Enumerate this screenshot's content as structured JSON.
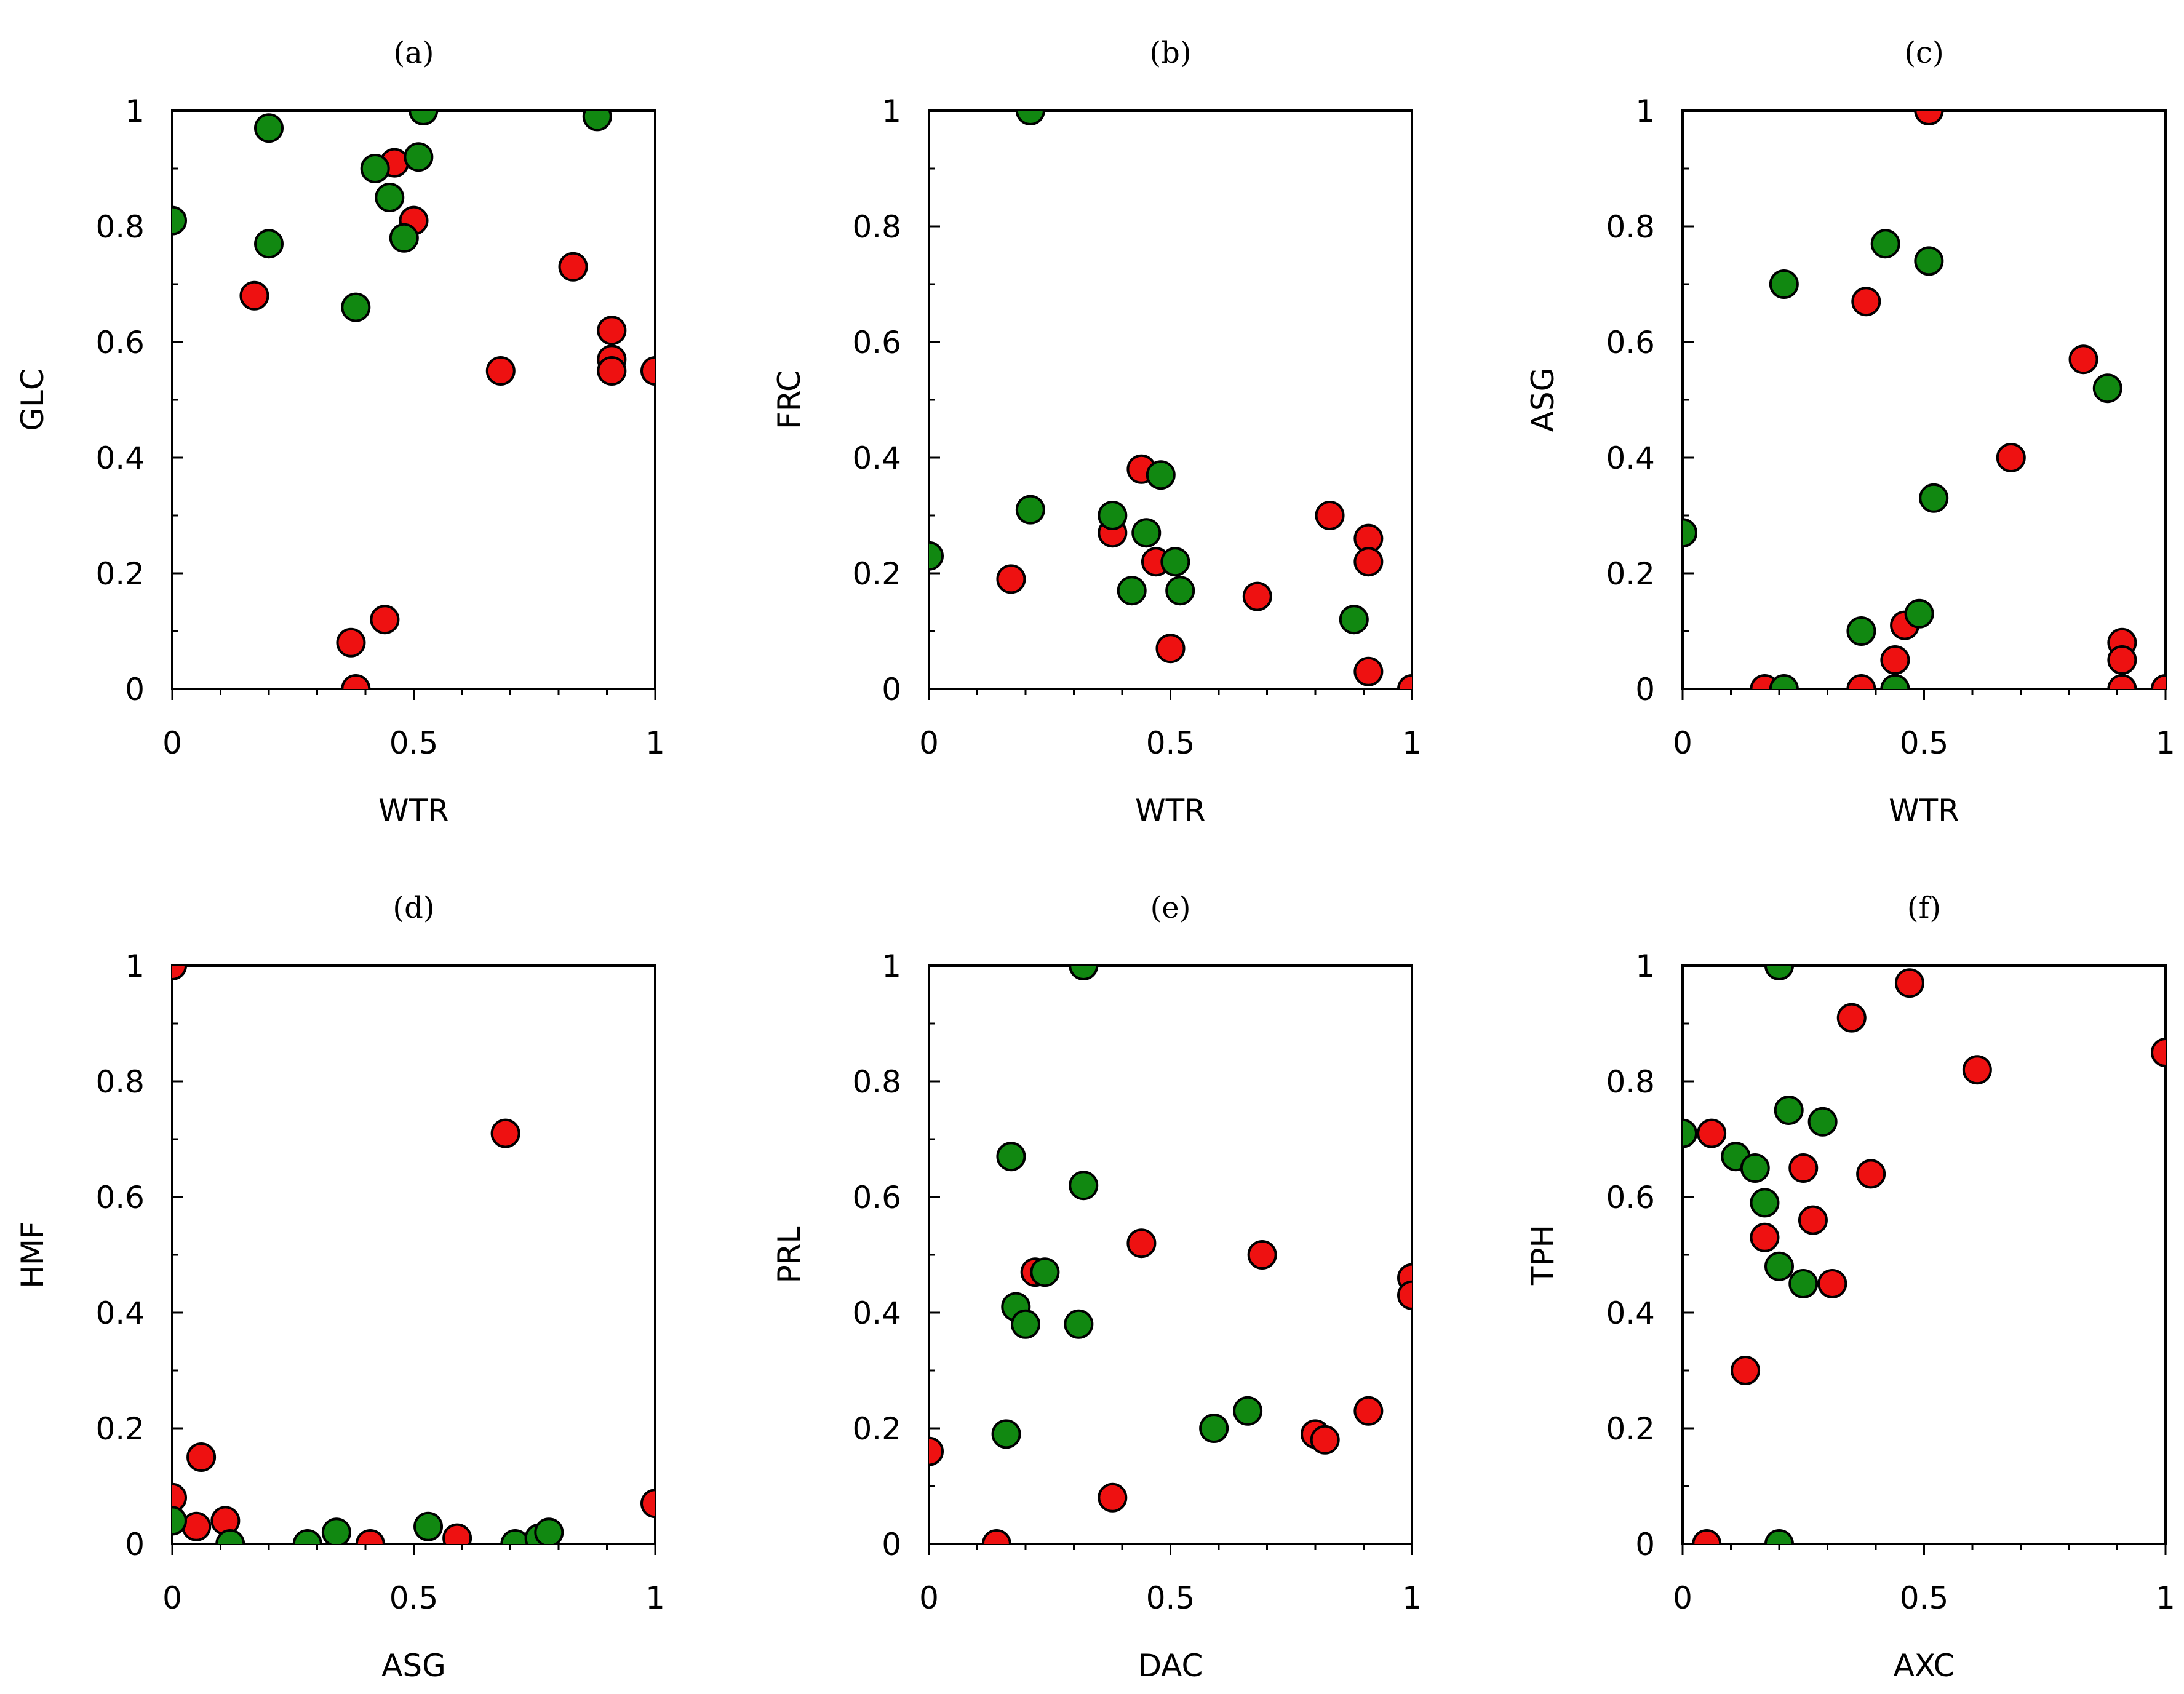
{
  "colors": {
    "groupA": "#ee1111",
    "groupB": "#118811"
  },
  "chart_data": [
    {
      "type": "scatter",
      "title": "(a)",
      "xlabel": "WTR",
      "ylabel": "GLC",
      "xlim": [
        0,
        1
      ],
      "ylim": [
        0,
        1
      ],
      "xticks": [
        "0",
        "0.5",
        "1"
      ],
      "yticks": [
        "0",
        "0.2",
        "0.4",
        "0.6",
        "0.8",
        "1"
      ],
      "series": [
        {
          "name": "red",
          "color": "#ee1111",
          "points": [
            [
              0.17,
              0.68
            ],
            [
              0.37,
              0.08
            ],
            [
              0.38,
              0.0
            ],
            [
              0.44,
              0.12
            ],
            [
              0.46,
              0.91
            ],
            [
              0.5,
              0.81
            ],
            [
              0.68,
              0.55
            ],
            [
              0.83,
              0.73
            ],
            [
              0.91,
              0.62
            ],
            [
              0.91,
              0.57
            ],
            [
              0.91,
              0.55
            ],
            [
              1.0,
              0.55
            ]
          ]
        },
        {
          "name": "green",
          "color": "#118811",
          "points": [
            [
              0.0,
              0.81
            ],
            [
              0.2,
              0.97
            ],
            [
              0.2,
              0.77
            ],
            [
              0.38,
              0.66
            ],
            [
              0.42,
              0.9
            ],
            [
              0.45,
              0.85
            ],
            [
              0.48,
              0.78
            ],
            [
              0.51,
              0.92
            ],
            [
              0.52,
              1.0
            ],
            [
              0.88,
              0.99
            ]
          ]
        }
      ]
    },
    {
      "type": "scatter",
      "title": "(b)",
      "xlabel": "WTR",
      "ylabel": "FRC",
      "xlim": [
        0,
        1
      ],
      "ylim": [
        0,
        1
      ],
      "xticks": [
        "0",
        "0.5",
        "1"
      ],
      "yticks": [
        "0",
        "0.2",
        "0.4",
        "0.6",
        "0.8",
        "1"
      ],
      "series": [
        {
          "name": "red",
          "color": "#ee1111",
          "points": [
            [
              0.17,
              0.19
            ],
            [
              0.38,
              0.27
            ],
            [
              0.44,
              0.38
            ],
            [
              0.47,
              0.22
            ],
            [
              0.5,
              0.07
            ],
            [
              0.68,
              0.16
            ],
            [
              0.83,
              0.3
            ],
            [
              0.91,
              0.26
            ],
            [
              0.91,
              0.22
            ],
            [
              0.91,
              0.03
            ],
            [
              1.0,
              0.0
            ]
          ]
        },
        {
          "name": "green",
          "color": "#118811",
          "points": [
            [
              0.0,
              0.23
            ],
            [
              0.21,
              1.0
            ],
            [
              0.21,
              0.31
            ],
            [
              0.38,
              0.3
            ],
            [
              0.42,
              0.17
            ],
            [
              0.45,
              0.27
            ],
            [
              0.48,
              0.37
            ],
            [
              0.51,
              0.22
            ],
            [
              0.52,
              0.17
            ],
            [
              0.88,
              0.12
            ]
          ]
        }
      ]
    },
    {
      "type": "scatter",
      "title": "(c)",
      "xlabel": "WTR",
      "ylabel": "ASG",
      "xlim": [
        0,
        1
      ],
      "ylim": [
        0,
        1
      ],
      "xticks": [
        "0",
        "0.5",
        "1"
      ],
      "yticks": [
        "0",
        "0.2",
        "0.4",
        "0.6",
        "0.8",
        "1"
      ],
      "series": [
        {
          "name": "red",
          "color": "#ee1111",
          "points": [
            [
              0.17,
              0.0
            ],
            [
              0.37,
              0.0
            ],
            [
              0.38,
              0.67
            ],
            [
              0.44,
              0.05
            ],
            [
              0.46,
              0.11
            ],
            [
              0.51,
              1.0
            ],
            [
              0.68,
              0.4
            ],
            [
              0.83,
              0.57
            ],
            [
              0.91,
              0.08
            ],
            [
              0.91,
              0.05
            ],
            [
              0.91,
              0.0
            ],
            [
              1.0,
              0.0
            ]
          ]
        },
        {
          "name": "green",
          "color": "#118811",
          "points": [
            [
              0.0,
              0.27
            ],
            [
              0.21,
              0.7
            ],
            [
              0.21,
              0.0
            ],
            [
              0.37,
              0.1
            ],
            [
              0.42,
              0.77
            ],
            [
              0.44,
              0.0
            ],
            [
              0.49,
              0.13
            ],
            [
              0.51,
              0.74
            ],
            [
              0.52,
              0.33
            ],
            [
              0.88,
              0.52
            ]
          ]
        }
      ]
    },
    {
      "type": "scatter",
      "title": "(d)",
      "xlabel": "ASG",
      "ylabel": "HMF",
      "xlim": [
        0,
        1
      ],
      "ylim": [
        0,
        1
      ],
      "xticks": [
        "0",
        "0.5",
        "1"
      ],
      "yticks": [
        "0",
        "0.2",
        "0.4",
        "0.6",
        "0.8",
        "1"
      ],
      "series": [
        {
          "name": "red",
          "color": "#ee1111",
          "points": [
            [
              0.0,
              1.0
            ],
            [
              0.0,
              0.08
            ],
            [
              0.05,
              0.03
            ],
            [
              0.06,
              0.15
            ],
            [
              0.11,
              0.04
            ],
            [
              0.41,
              0.0
            ],
            [
              0.59,
              0.01
            ],
            [
              0.69,
              0.71
            ],
            [
              1.0,
              0.07
            ]
          ]
        },
        {
          "name": "green",
          "color": "#118811",
          "points": [
            [
              0.0,
              0.04
            ],
            [
              0.12,
              0.0
            ],
            [
              0.28,
              0.0
            ],
            [
              0.34,
              0.02
            ],
            [
              0.53,
              0.03
            ],
            [
              0.71,
              0.0
            ],
            [
              0.76,
              0.01
            ],
            [
              0.78,
              0.02
            ]
          ]
        }
      ]
    },
    {
      "type": "scatter",
      "title": "(e)",
      "xlabel": "DAC",
      "ylabel": "PRL",
      "xlim": [
        0,
        1
      ],
      "ylim": [
        0,
        1
      ],
      "xticks": [
        "0",
        "0.5",
        "1"
      ],
      "yticks": [
        "0",
        "0.2",
        "0.4",
        "0.6",
        "0.8",
        "1"
      ],
      "series": [
        {
          "name": "red",
          "color": "#ee1111",
          "points": [
            [
              0.0,
              0.16
            ],
            [
              0.14,
              0.0
            ],
            [
              0.22,
              0.47
            ],
            [
              0.38,
              0.08
            ],
            [
              0.44,
              0.52
            ],
            [
              0.69,
              0.5
            ],
            [
              0.8,
              0.19
            ],
            [
              0.82,
              0.18
            ],
            [
              0.91,
              0.23
            ],
            [
              1.0,
              0.46
            ],
            [
              1.0,
              0.43
            ]
          ]
        },
        {
          "name": "green",
          "color": "#118811",
          "points": [
            [
              0.16,
              0.19
            ],
            [
              0.17,
              0.67
            ],
            [
              0.18,
              0.41
            ],
            [
              0.2,
              0.38
            ],
            [
              0.24,
              0.47
            ],
            [
              0.31,
              0.38
            ],
            [
              0.32,
              1.0
            ],
            [
              0.32,
              0.62
            ],
            [
              0.59,
              0.2
            ],
            [
              0.66,
              0.23
            ]
          ]
        }
      ]
    },
    {
      "type": "scatter",
      "title": "(f)",
      "xlabel": "AXC",
      "ylabel": "TPH",
      "xlim": [
        0,
        1
      ],
      "ylim": [
        0,
        1
      ],
      "xticks": [
        "0",
        "0.5",
        "1"
      ],
      "yticks": [
        "0",
        "0.2",
        "0.4",
        "0.6",
        "0.8",
        "1"
      ],
      "series": [
        {
          "name": "red",
          "color": "#ee1111",
          "points": [
            [
              0.05,
              0.0
            ],
            [
              0.06,
              0.71
            ],
            [
              0.13,
              0.3
            ],
            [
              0.17,
              0.53
            ],
            [
              0.25,
              0.65
            ],
            [
              0.27,
              0.56
            ],
            [
              0.31,
              0.45
            ],
            [
              0.35,
              0.91
            ],
            [
              0.39,
              0.64
            ],
            [
              0.47,
              0.97
            ],
            [
              0.61,
              0.82
            ],
            [
              1.0,
              0.85
            ]
          ]
        },
        {
          "name": "green",
          "color": "#118811",
          "points": [
            [
              0.0,
              0.71
            ],
            [
              0.11,
              0.67
            ],
            [
              0.15,
              0.65
            ],
            [
              0.17,
              0.59
            ],
            [
              0.2,
              1.0
            ],
            [
              0.2,
              0.48
            ],
            [
              0.2,
              0.0
            ],
            [
              0.22,
              0.75
            ],
            [
              0.25,
              0.45
            ],
            [
              0.29,
              0.73
            ]
          ]
        }
      ]
    }
  ]
}
